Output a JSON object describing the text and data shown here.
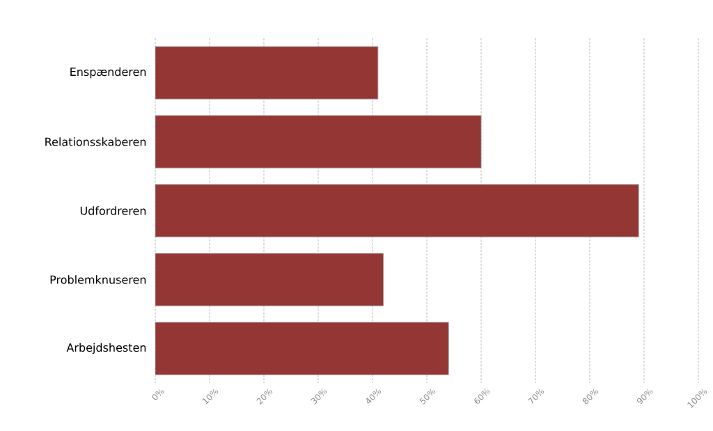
{
  "chart_data": {
    "type": "bar",
    "orientation": "horizontal",
    "categories": [
      "Enspænderen",
      "Relationsskaberen",
      "Udfordreren",
      "Problemknuseren",
      "Arbejdshesten"
    ],
    "values": [
      41,
      60,
      89,
      42,
      54
    ],
    "color": "#943634",
    "xlim": [
      0,
      100
    ],
    "xticks": [
      {
        "value": 0,
        "label": "0%"
      },
      {
        "value": 10,
        "label": "10%"
      },
      {
        "value": 20,
        "label": "20%"
      },
      {
        "value": 30,
        "label": "30%"
      },
      {
        "value": 40,
        "label": "40%"
      },
      {
        "value": 50,
        "label": "50%"
      },
      {
        "value": 60,
        "label": "60%"
      },
      {
        "value": 70,
        "label": "70%"
      },
      {
        "value": 80,
        "label": "80%"
      },
      {
        "value": 90,
        "label": "90%"
      },
      {
        "value": 100,
        "label": "100%"
      }
    ],
    "grid": "x"
  }
}
